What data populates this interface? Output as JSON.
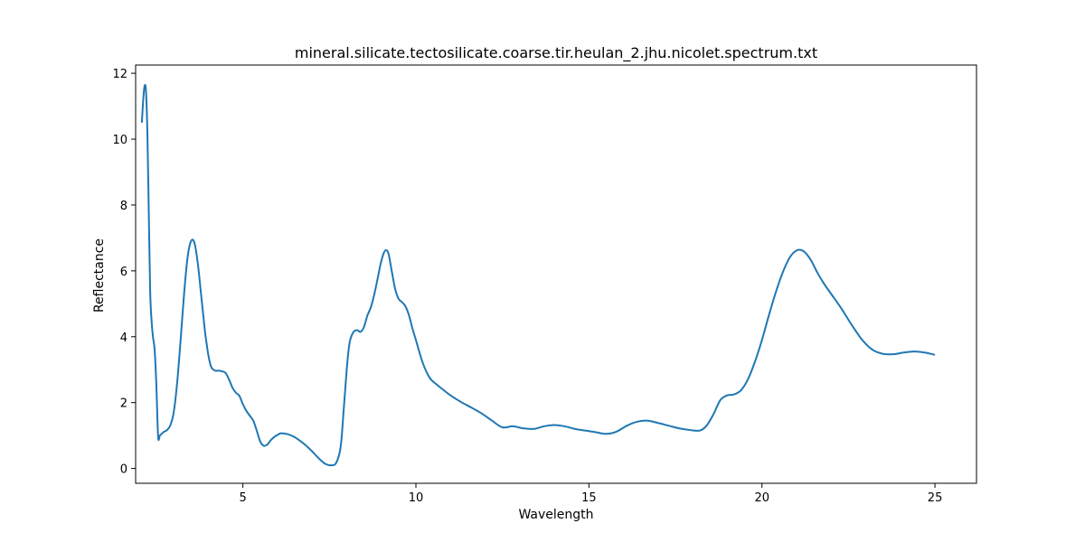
{
  "chart_data": {
    "type": "line",
    "title": "mineral.silicate.tectosilicate.coarse.tir.heulan_2.jhu.nicolet.spectrum.txt",
    "xlabel": "Wavelength",
    "ylabel": "Reflectance",
    "xlim": [
      1.9,
      26.2
    ],
    "ylim": [
      -0.45,
      12.25
    ],
    "xticks": [
      5,
      10,
      15,
      20,
      25
    ],
    "yticks": [
      0,
      2,
      4,
      6,
      8,
      10,
      12
    ],
    "grid": false,
    "legend": "none",
    "series": [
      {
        "color": "#1f77b4",
        "x": [
          2.08,
          2.12,
          2.16,
          2.2,
          2.24,
          2.28,
          2.32,
          2.36,
          2.4,
          2.45,
          2.5,
          2.55,
          2.6,
          2.65,
          2.7,
          2.75,
          2.8,
          2.9,
          3.0,
          3.1,
          3.2,
          3.3,
          3.4,
          3.5,
          3.6,
          3.7,
          3.8,
          3.9,
          3.95,
          4.0,
          4.05,
          4.1,
          4.2,
          4.3,
          4.4,
          4.5,
          4.6,
          4.7,
          4.8,
          4.9,
          5.0,
          5.1,
          5.2,
          5.3,
          5.4,
          5.5,
          5.6,
          5.7,
          5.8,
          5.9,
          6.0,
          6.05,
          6.1,
          6.2,
          6.3,
          6.4,
          6.5,
          6.6,
          6.8,
          7.0,
          7.2,
          7.4,
          7.6,
          7.7,
          7.8,
          7.85,
          7.9,
          7.95,
          8.0,
          8.05,
          8.1,
          8.2,
          8.3,
          8.4,
          8.5,
          8.6,
          8.7,
          8.8,
          8.9,
          9.0,
          9.1,
          9.2,
          9.3,
          9.4,
          9.5,
          9.6,
          9.7,
          9.8,
          9.9,
          10.0,
          10.2,
          10.4,
          10.6,
          10.8,
          11.0,
          11.3,
          11.6,
          11.9,
          12.2,
          12.5,
          12.8,
          13.1,
          13.4,
          13.7,
          14.0,
          14.3,
          14.6,
          14.9,
          15.2,
          15.5,
          15.8,
          16.1,
          16.4,
          16.7,
          17.0,
          17.3,
          17.6,
          17.9,
          18.2,
          18.4,
          18.6,
          18.8,
          19.0,
          19.2,
          19.4,
          19.6,
          19.8,
          20.0,
          20.2,
          20.4,
          20.6,
          20.8,
          21.0,
          21.2,
          21.4,
          21.6,
          21.8,
          22.0,
          22.3,
          22.6,
          22.9,
          23.2,
          23.5,
          23.8,
          24.1,
          24.4,
          24.7,
          25.0
        ],
        "y": [
          10.5,
          11.2,
          11.62,
          11.45,
          10.2,
          7.8,
          5.4,
          4.5,
          4.0,
          3.6,
          2.5,
          0.97,
          1.0,
          1.05,
          1.1,
          1.13,
          1.16,
          1.3,
          1.7,
          2.6,
          3.9,
          5.3,
          6.4,
          6.9,
          6.85,
          6.2,
          5.2,
          4.2,
          3.8,
          3.45,
          3.2,
          3.05,
          2.97,
          2.97,
          2.95,
          2.9,
          2.7,
          2.45,
          2.3,
          2.2,
          1.95,
          1.75,
          1.6,
          1.45,
          1.15,
          0.82,
          0.69,
          0.72,
          0.85,
          0.95,
          1.02,
          1.05,
          1.07,
          1.06,
          1.04,
          1.0,
          0.95,
          0.88,
          0.72,
          0.52,
          0.3,
          0.13,
          0.1,
          0.18,
          0.5,
          0.9,
          1.6,
          2.3,
          3.0,
          3.55,
          3.9,
          4.15,
          4.2,
          4.15,
          4.3,
          4.65,
          4.9,
          5.3,
          5.8,
          6.3,
          6.6,
          6.55,
          6.0,
          5.45,
          5.15,
          5.05,
          4.92,
          4.65,
          4.25,
          3.9,
          3.2,
          2.75,
          2.55,
          2.38,
          2.22,
          2.02,
          1.85,
          1.67,
          1.45,
          1.25,
          1.28,
          1.22,
          1.2,
          1.28,
          1.32,
          1.28,
          1.2,
          1.15,
          1.1,
          1.05,
          1.12,
          1.3,
          1.42,
          1.45,
          1.38,
          1.3,
          1.22,
          1.17,
          1.15,
          1.3,
          1.65,
          2.08,
          2.22,
          2.25,
          2.38,
          2.72,
          3.25,
          3.9,
          4.65,
          5.35,
          5.95,
          6.4,
          6.62,
          6.6,
          6.35,
          5.95,
          5.6,
          5.3,
          4.85,
          4.35,
          3.9,
          3.6,
          3.48,
          3.47,
          3.52,
          3.55,
          3.52,
          3.45
        ]
      }
    ]
  }
}
